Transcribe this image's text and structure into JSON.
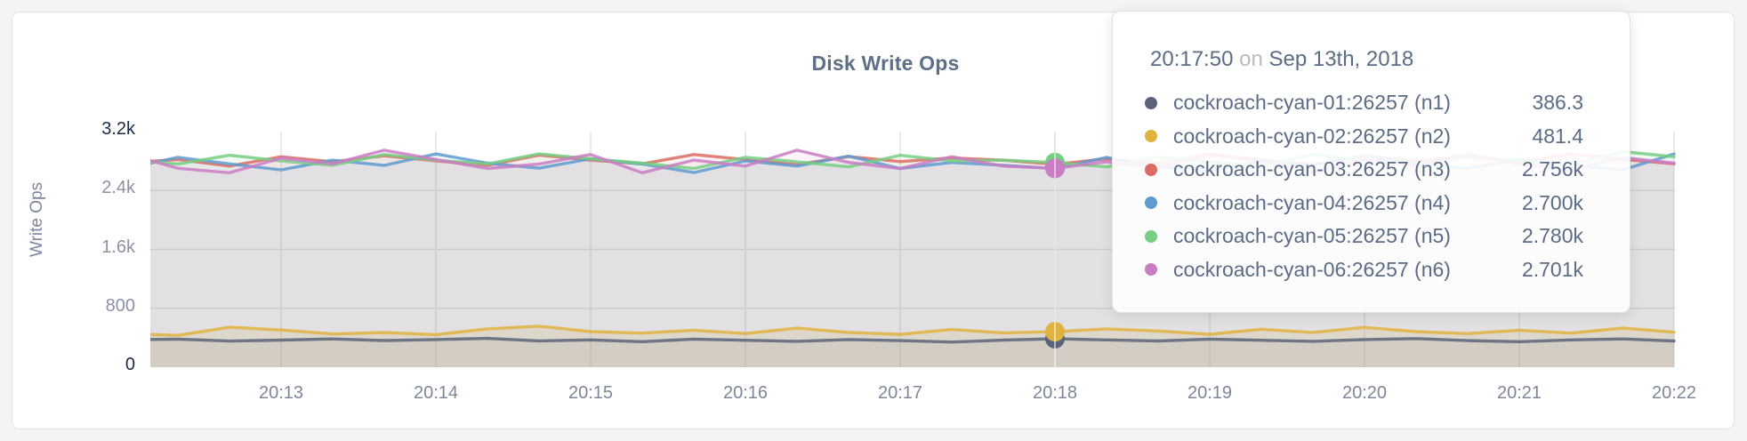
{
  "chart_data": {
    "type": "line",
    "title": "Disk Write Ops",
    "ylabel": "Write Ops",
    "ylim": [
      0,
      3200
    ],
    "grid": true,
    "legend_position": "tooltip-only",
    "y_ticks": [
      {
        "label": "0",
        "value": 0,
        "strong": true
      },
      {
        "label": "800",
        "value": 800,
        "strong": false
      },
      {
        "label": "1.6k",
        "value": 1600,
        "strong": false
      },
      {
        "label": "2.4k",
        "value": 2400,
        "strong": false
      },
      {
        "label": "3.2k",
        "value": 3200,
        "strong": true
      }
    ],
    "x_ticks": [
      "20:13",
      "20:14",
      "20:15",
      "20:16",
      "20:17",
      "20:18",
      "20:19",
      "20:20",
      "20:21",
      "20:22"
    ],
    "start_time": "20:11:50",
    "step_seconds": 20,
    "series": [
      {
        "name": "cockroach-cyan-01:26257 (n1)",
        "color": "#5a6478",
        "fill_opacity": 0.1,
        "values": [
          372,
          381,
          355,
          368,
          384,
          362,
          376,
          391,
          357,
          371,
          347,
          381,
          366,
          352,
          376,
          361,
          342,
          368,
          386.3,
          371,
          356,
          381,
          366,
          351,
          376,
          389,
          361,
          347,
          371,
          384,
          356
        ]
      },
      {
        "name": "cockroach-cyan-02:26257 (n2)",
        "color": "#e0b33f",
        "fill_opacity": 0.16,
        "values": [
          455,
          432,
          543,
          505,
          452,
          471,
          442,
          521,
          558,
          483,
          462,
          502,
          456,
          531,
          472,
          447,
          512,
          466,
          481.4,
          521,
          492,
          447,
          516,
          472,
          541,
          483,
          457,
          502,
          462,
          531,
          476
        ]
      },
      {
        "name": "cockroach-cyan-03:26257 (n3)",
        "color": "#dc6c63",
        "fill_opacity": 0.08,
        "values": [
          2779,
          2821,
          2732,
          2858,
          2791,
          2872,
          2803,
          2741,
          2881,
          2812,
          2762,
          2888,
          2821,
          2752,
          2861,
          2793,
          2842,
          2811,
          2756,
          2831,
          2771,
          2898,
          2812,
          2751,
          2869,
          2801,
          2858,
          2781,
          2897,
          2822,
          2763
        ]
      },
      {
        "name": "cockroach-cyan-04:26257 (n4)",
        "color": "#5f9bd1",
        "fill_opacity": 0.08,
        "values": [
          2698,
          2851,
          2762,
          2679,
          2812,
          2741,
          2897,
          2771,
          2702,
          2832,
          2761,
          2643,
          2801,
          2731,
          2868,
          2699,
          2781,
          2742,
          2700,
          2849,
          2721,
          2663,
          2801,
          2742,
          2878,
          2761,
          2701,
          2822,
          2751,
          2679,
          2897
        ]
      },
      {
        "name": "cockroach-cyan-05:26257 (n5)",
        "color": "#74cf82",
        "fill_opacity": 0.08,
        "values": [
          2818,
          2761,
          2879,
          2801,
          2742,
          2888,
          2811,
          2762,
          2897,
          2831,
          2771,
          2699,
          2851,
          2791,
          2721,
          2879,
          2801,
          2812,
          2780,
          2721,
          2858,
          2791,
          2731,
          2888,
          2811,
          2751,
          2869,
          2801,
          2742,
          2928,
          2858
        ]
      },
      {
        "name": "cockroach-cyan-06:26257 (n6)",
        "color": "#ca7cc4",
        "fill_opacity": 0.08,
        "values": [
          2897,
          2701,
          2641,
          2838,
          2762,
          2948,
          2821,
          2699,
          2759,
          2888,
          2641,
          2812,
          2731,
          2948,
          2781,
          2699,
          2858,
          2731,
          2701,
          2791,
          2712,
          2879,
          2801,
          2651,
          2821,
          2741,
          2897,
          2762,
          2679,
          2848,
          2771
        ]
      }
    ],
    "hover": {
      "index": 18,
      "time": "20:17:50",
      "on_word": "on",
      "date": "Sep 13th, 2018",
      "rows": [
        {
          "name": "cockroach-cyan-01:26257 (n1)",
          "value": "386.3",
          "color": "#5a6478"
        },
        {
          "name": "cockroach-cyan-02:26257 (n2)",
          "value": "481.4",
          "color": "#e0b33f"
        },
        {
          "name": "cockroach-cyan-03:26257 (n3)",
          "value": "2.756k",
          "color": "#dc6c63"
        },
        {
          "name": "cockroach-cyan-04:26257 (n4)",
          "value": "2.700k",
          "color": "#5f9bd1"
        },
        {
          "name": "cockroach-cyan-05:26257 (n5)",
          "value": "2.780k",
          "color": "#74cf82"
        },
        {
          "name": "cockroach-cyan-06:26257 (n6)",
          "value": "2.701k",
          "color": "#ca7cc4"
        }
      ]
    },
    "colors": {
      "grid": "#e4e4e6",
      "crosshair": "#c7c7ca",
      "tick_strong": "#1d2845",
      "tick_normal": "#8b92a4",
      "title": "#5d6e87"
    }
  }
}
